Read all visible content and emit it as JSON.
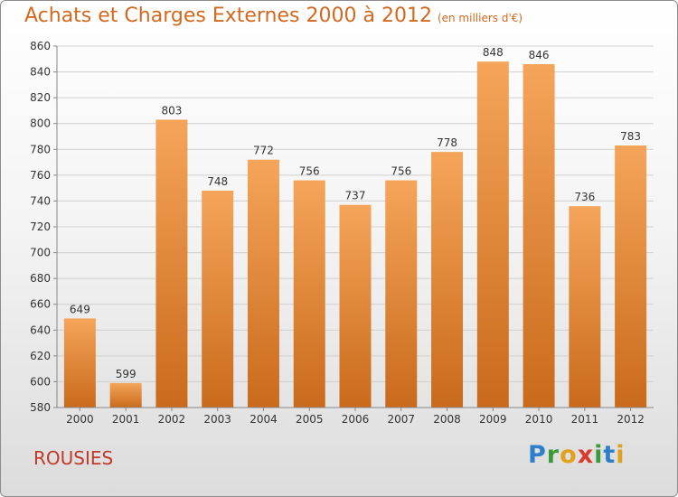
{
  "header": {
    "title": "Achats et Charges Externes 2000 à 2012",
    "subtitle": "(en milliers d'€)"
  },
  "location": "ROUSIES",
  "brand": {
    "text": "Proxiti",
    "letters": [
      "P",
      "r",
      "o",
      "x",
      "i",
      "t",
      "i"
    ],
    "letter_colors": [
      "#2e7fc9",
      "#3a9a3a",
      "#e0a21a",
      "#d93a2b",
      "#3a9a3a",
      "#2e7fc9",
      "#e0a21a"
    ]
  },
  "chart_data": {
    "type": "bar",
    "categories": [
      "2000",
      "2001",
      "2002",
      "2003",
      "2004",
      "2005",
      "2006",
      "2007",
      "2008",
      "2009",
      "2010",
      "2011",
      "2012"
    ],
    "values": [
      649,
      599,
      803,
      748,
      772,
      756,
      737,
      756,
      778,
      848,
      846,
      736,
      783
    ],
    "title": "Achats et Charges Externes 2000 à 2012",
    "xlabel": "",
    "ylabel": "",
    "ylim": [
      580,
      860
    ],
    "yticks": [
      580,
      600,
      620,
      640,
      660,
      680,
      700,
      720,
      740,
      760,
      780,
      800,
      820,
      840,
      860
    ],
    "grid": true,
    "bar_color_top": "#f5a55a",
    "bar_color_bottom": "#c96a1b"
  }
}
